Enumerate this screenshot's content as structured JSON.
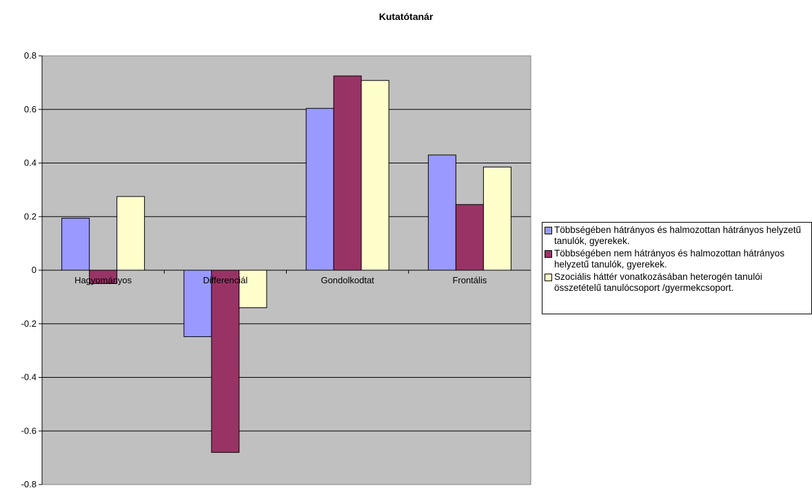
{
  "chart_data": {
    "type": "bar",
    "title": "Kutatótanár",
    "categories": [
      "Hagyományos",
      "Differenciál",
      "Gondolkodtat",
      "Frontális"
    ],
    "series": [
      {
        "name": "Többségében hátrányos és halmozottan hátrányos helyzetű tanulók, gyerekek.",
        "color": "#9999ff",
        "values": [
          0.194,
          -0.248,
          0.604,
          0.43
        ]
      },
      {
        "name": "Többségében nem hátrányos és halmozottan hátrányos helyzetű tanulók, gyerekek.",
        "color": "#993366",
        "values": [
          -0.05,
          -0.68,
          0.725,
          0.245
        ]
      },
      {
        "name": "Szociális háttér vonatkozásában heterogén tanulói összetételű tanulócsoport /gyermekcsoport.",
        "color": "#ffffcc",
        "values": [
          0.275,
          -0.14,
          0.708,
          0.385
        ]
      }
    ],
    "ylim": [
      -0.8,
      0.8
    ],
    "yticks": [
      "0.8",
      "0.6",
      "0.4",
      "0.2",
      "0",
      "-0.2",
      "-0.4",
      "-0.6",
      "-0.8"
    ],
    "plot_background": "#c0c0c0",
    "grid": true,
    "legend_position": "right"
  }
}
